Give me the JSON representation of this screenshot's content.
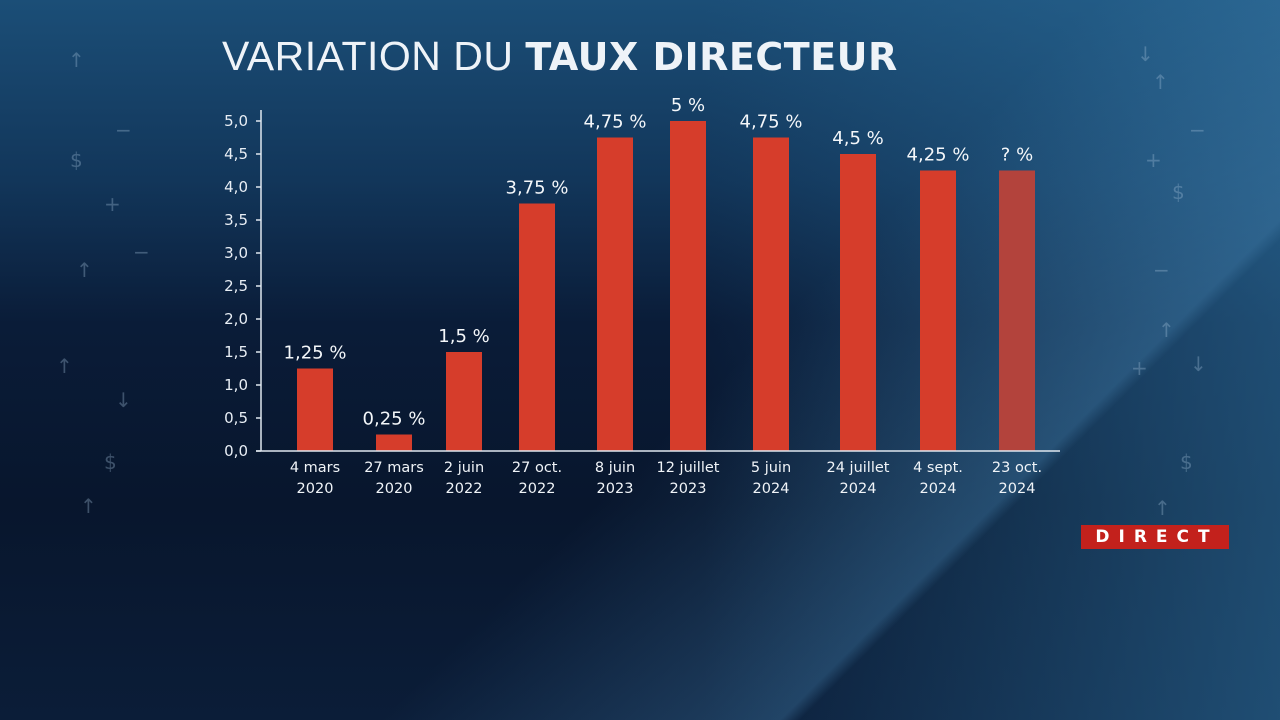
{
  "title": {
    "light": "VARIATION DU ",
    "bold": "TAUX DIRECTEUR"
  },
  "badge": "DIRECT",
  "decorations": [
    "↑",
    "$",
    "+",
    "↑",
    "−",
    "↑",
    "↓",
    "$",
    "↑",
    "−",
    "↓",
    "↑",
    "+",
    "$",
    "−",
    "↑",
    "+",
    "↓",
    "$",
    "↑",
    "−"
  ],
  "colors": {
    "bar": "#d63d2b",
    "bar_pending": "#b3433c",
    "axis": "#dfe7ef"
  },
  "chart_data": {
    "type": "bar",
    "title": "VARIATION DU TAUX DIRECTEUR",
    "xlabel": "",
    "ylabel": "",
    "ylim": [
      0,
      5
    ],
    "yticks": [
      "0,0",
      "0,5",
      "1,0",
      "1,5",
      "2,0",
      "2,5",
      "3,0",
      "3,5",
      "4,0",
      "4,5",
      "5,0"
    ],
    "categories": [
      [
        "4 mars",
        "2020"
      ],
      [
        "27 mars",
        "2020"
      ],
      [
        "2 juin",
        "2022"
      ],
      [
        "27 oct.",
        "2022"
      ],
      [
        "8 juin",
        "2023"
      ],
      [
        "12 juillet",
        "2023"
      ],
      [
        "5 juin",
        "2024"
      ],
      [
        "24 juillet",
        "2024"
      ],
      [
        "4 sept.",
        "2024"
      ],
      [
        "23 oct.",
        "2024"
      ]
    ],
    "values": [
      1.25,
      0.25,
      1.5,
      3.75,
      4.75,
      5,
      4.75,
      4.5,
      4.25,
      4.25
    ],
    "labels": [
      "1,25 %",
      "0,25 %",
      "1,5 %",
      "3,75 %",
      "4,75 %",
      "5 %",
      "4,75 %",
      "4,5 %",
      "4,25 %",
      "? %"
    ],
    "pending": [
      false,
      false,
      false,
      false,
      false,
      false,
      false,
      false,
      false,
      true
    ],
    "grid": false,
    "legend": "none"
  }
}
